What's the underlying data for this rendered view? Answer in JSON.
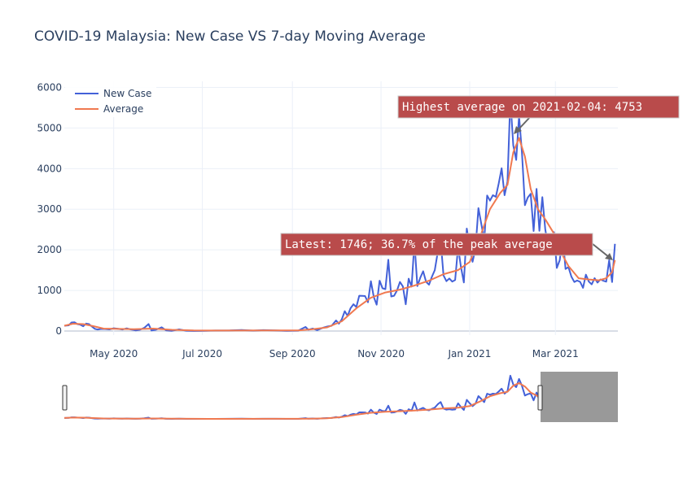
{
  "chart_data": {
    "type": "line",
    "title": "COVID-19 Malaysia: New Case VS 7-day Moving Average",
    "xlabel": "",
    "ylabel": "",
    "x_range": [
      "2020-03-28",
      "2021-04-13"
    ],
    "ylim": [
      -100,
      6150
    ],
    "yticks": [
      0,
      1000,
      2000,
      3000,
      4000,
      5000,
      6000
    ],
    "xticks": [
      {
        "date": "2020-05-01",
        "label": "May 2020"
      },
      {
        "date": "2020-07-01",
        "label": "Jul 2020"
      },
      {
        "date": "2020-09-01",
        "label": "Sep 2020"
      },
      {
        "date": "2020-11-01",
        "label": "Nov 2020"
      },
      {
        "date": "2021-01-01",
        "label": "Jan 2021"
      },
      {
        "date": "2021-03-01",
        "label": "Mar 2021"
      }
    ],
    "grid": true,
    "legend_position": "top-left",
    "series": [
      {
        "name": "New Case",
        "color": "#4361d8",
        "points": [
          [
            "2020-03-28",
            130
          ],
          [
            "2020-03-31",
            140
          ],
          [
            "2020-04-02",
            210
          ],
          [
            "2020-04-04",
            217
          ],
          [
            "2020-04-06",
            170
          ],
          [
            "2020-04-08",
            156
          ],
          [
            "2020-04-10",
            118
          ],
          [
            "2020-04-12",
            184
          ],
          [
            "2020-04-14",
            170
          ],
          [
            "2020-04-16",
            110
          ],
          [
            "2020-04-18",
            54
          ],
          [
            "2020-04-20",
            36
          ],
          [
            "2020-04-22",
            50
          ],
          [
            "2020-04-25",
            51
          ],
          [
            "2020-04-28",
            40
          ],
          [
            "2020-05-01",
            69
          ],
          [
            "2020-05-04",
            55
          ],
          [
            "2020-05-07",
            39
          ],
          [
            "2020-05-10",
            67
          ],
          [
            "2020-05-13",
            37
          ],
          [
            "2020-05-16",
            17
          ],
          [
            "2020-05-19",
            31
          ],
          [
            "2020-05-22",
            78
          ],
          [
            "2020-05-25",
            172
          ],
          [
            "2020-05-27",
            15
          ],
          [
            "2020-05-30",
            30
          ],
          [
            "2020-06-03",
            93
          ],
          [
            "2020-06-06",
            19
          ],
          [
            "2020-06-10",
            7
          ],
          [
            "2020-06-15",
            41
          ],
          [
            "2020-06-20",
            8
          ],
          [
            "2020-06-25",
            3
          ],
          [
            "2020-07-01",
            5
          ],
          [
            "2020-07-10",
            13
          ],
          [
            "2020-07-20",
            15
          ],
          [
            "2020-07-28",
            25
          ],
          [
            "2020-08-05",
            10
          ],
          [
            "2020-08-12",
            22
          ],
          [
            "2020-08-20",
            15
          ],
          [
            "2020-08-28",
            5
          ],
          [
            "2020-09-05",
            10
          ],
          [
            "2020-09-10",
            100
          ],
          [
            "2020-09-12",
            30
          ],
          [
            "2020-09-15",
            62
          ],
          [
            "2020-09-18",
            20
          ],
          [
            "2020-09-22",
            80
          ],
          [
            "2020-09-25",
            111
          ],
          [
            "2020-09-28",
            130
          ],
          [
            "2020-10-01",
            260
          ],
          [
            "2020-10-03",
            180
          ],
          [
            "2020-10-05",
            290
          ],
          [
            "2020-10-07",
            489
          ],
          [
            "2020-10-09",
            374
          ],
          [
            "2020-10-11",
            561
          ],
          [
            "2020-10-13",
            660
          ],
          [
            "2020-10-15",
            589
          ],
          [
            "2020-10-17",
            869
          ],
          [
            "2020-10-19",
            865
          ],
          [
            "2020-10-21",
            862
          ],
          [
            "2020-10-23",
            710
          ],
          [
            "2020-10-25",
            1228
          ],
          [
            "2020-10-27",
            835
          ],
          [
            "2020-10-29",
            649
          ],
          [
            "2020-10-31",
            1240
          ],
          [
            "2020-11-02",
            1054
          ],
          [
            "2020-11-04",
            1032
          ],
          [
            "2020-11-06",
            1755
          ],
          [
            "2020-11-08",
            852
          ],
          [
            "2020-11-10",
            869
          ],
          [
            "2020-11-12",
            1000
          ],
          [
            "2020-11-14",
            1208
          ],
          [
            "2020-11-16",
            1097
          ],
          [
            "2020-11-18",
            660
          ],
          [
            "2020-11-20",
            1290
          ],
          [
            "2020-11-22",
            1096
          ],
          [
            "2020-11-24",
            2188
          ],
          [
            "2020-11-26",
            1108
          ],
          [
            "2020-11-28",
            1315
          ],
          [
            "2020-11-30",
            1472
          ],
          [
            "2020-12-02",
            1212
          ],
          [
            "2020-12-04",
            1141
          ],
          [
            "2020-12-06",
            1335
          ],
          [
            "2020-12-08",
            1500
          ],
          [
            "2020-12-10",
            1937
          ],
          [
            "2020-12-12",
            2234
          ],
          [
            "2020-12-14",
            1371
          ],
          [
            "2020-12-16",
            1229
          ],
          [
            "2020-12-18",
            1295
          ],
          [
            "2020-12-20",
            1219
          ],
          [
            "2020-12-22",
            1258
          ],
          [
            "2020-12-24",
            2068
          ],
          [
            "2020-12-26",
            1581
          ],
          [
            "2020-12-28",
            1196
          ],
          [
            "2020-12-30",
            2525
          ],
          [
            "2021-01-01",
            2068
          ],
          [
            "2021-01-03",
            1704
          ],
          [
            "2021-01-05",
            2027
          ],
          [
            "2021-01-07",
            3027
          ],
          [
            "2021-01-09",
            2643
          ],
          [
            "2021-01-11",
            2232
          ],
          [
            "2021-01-13",
            3337
          ],
          [
            "2021-01-15",
            3211
          ],
          [
            "2021-01-17",
            3346
          ],
          [
            "2021-01-19",
            3306
          ],
          [
            "2021-01-21",
            3631
          ],
          [
            "2021-01-23",
            4008
          ],
          [
            "2021-01-25",
            3346
          ],
          [
            "2021-01-27",
            3680
          ],
          [
            "2021-01-29",
            5725
          ],
          [
            "2021-01-31",
            4571
          ],
          [
            "2021-02-02",
            4214
          ],
          [
            "2021-02-04",
            5298
          ],
          [
            "2021-02-06",
            4384
          ],
          [
            "2021-02-08",
            3100
          ],
          [
            "2021-02-10",
            3288
          ],
          [
            "2021-02-12",
            3379
          ],
          [
            "2021-02-14",
            2464
          ],
          [
            "2021-02-16",
            3499
          ],
          [
            "2021-02-18",
            2468
          ],
          [
            "2021-02-20",
            3297
          ],
          [
            "2021-02-22",
            2506
          ],
          [
            "2021-02-24",
            2079
          ],
          [
            "2021-02-26",
            2253
          ],
          [
            "2021-02-28",
            2437
          ],
          [
            "2021-03-02",
            1555
          ],
          [
            "2021-03-04",
            1745
          ],
          [
            "2021-03-06",
            2341
          ],
          [
            "2021-03-08",
            1529
          ],
          [
            "2021-03-10",
            1575
          ],
          [
            "2021-03-12",
            1340
          ],
          [
            "2021-03-14",
            1208
          ],
          [
            "2021-03-16",
            1245
          ],
          [
            "2021-03-18",
            1213
          ],
          [
            "2021-03-20",
            1063
          ],
          [
            "2021-03-22",
            1389
          ],
          [
            "2021-03-24",
            1219
          ],
          [
            "2021-03-26",
            1149
          ],
          [
            "2021-03-28",
            1302
          ],
          [
            "2021-03-30",
            1195
          ],
          [
            "2021-04-01",
            1271
          ],
          [
            "2021-04-03",
            1239
          ],
          [
            "2021-04-05",
            1217
          ],
          [
            "2021-04-07",
            1745
          ],
          [
            "2021-04-09",
            1207
          ],
          [
            "2021-04-11",
            2148
          ]
        ]
      },
      {
        "name": "Average",
        "color": "#f07950",
        "points": [
          [
            "2020-03-28",
            130
          ],
          [
            "2020-04-03",
            180
          ],
          [
            "2020-04-10",
            170
          ],
          [
            "2020-04-17",
            120
          ],
          [
            "2020-04-24",
            60
          ],
          [
            "2020-05-01",
            55
          ],
          [
            "2020-05-15",
            45
          ],
          [
            "2020-05-28",
            60
          ],
          [
            "2020-06-10",
            30
          ],
          [
            "2020-06-25",
            15
          ],
          [
            "2020-07-15",
            12
          ],
          [
            "2020-08-15",
            15
          ],
          [
            "2020-09-05",
            15
          ],
          [
            "2020-09-15",
            45
          ],
          [
            "2020-09-25",
            90
          ],
          [
            "2020-10-05",
            240
          ],
          [
            "2020-10-15",
            560
          ],
          [
            "2020-10-25",
            820
          ],
          [
            "2020-11-04",
            950
          ],
          [
            "2020-11-14",
            1020
          ],
          [
            "2020-11-24",
            1120
          ],
          [
            "2020-12-04",
            1240
          ],
          [
            "2020-12-14",
            1400
          ],
          [
            "2020-12-24",
            1500
          ],
          [
            "2021-01-01",
            1700
          ],
          [
            "2021-01-08",
            2300
          ],
          [
            "2021-01-15",
            3000
          ],
          [
            "2021-01-22",
            3400
          ],
          [
            "2021-01-27",
            3600
          ],
          [
            "2021-01-31",
            4400
          ],
          [
            "2021-02-04",
            4753
          ],
          [
            "2021-02-08",
            4300
          ],
          [
            "2021-02-12",
            3500
          ],
          [
            "2021-02-17",
            3000
          ],
          [
            "2021-02-22",
            2750
          ],
          [
            "2021-02-28",
            2400
          ],
          [
            "2021-03-04",
            2000
          ],
          [
            "2021-03-10",
            1600
          ],
          [
            "2021-03-17",
            1300
          ],
          [
            "2021-03-24",
            1270
          ],
          [
            "2021-03-31",
            1250
          ],
          [
            "2021-04-05",
            1300
          ],
          [
            "2021-04-09",
            1450
          ],
          [
            "2021-04-11",
            1746
          ]
        ]
      }
    ],
    "annotations": [
      {
        "text": "Highest average on 2021-02-04: 4753",
        "x": "2021-02-04",
        "y": 4753
      },
      {
        "text": "Latest: 1746; 36.7% of the peak average",
        "x": "2021-04-11",
        "y": 1746
      }
    ],
    "annotation_color": "#b94b4b"
  }
}
